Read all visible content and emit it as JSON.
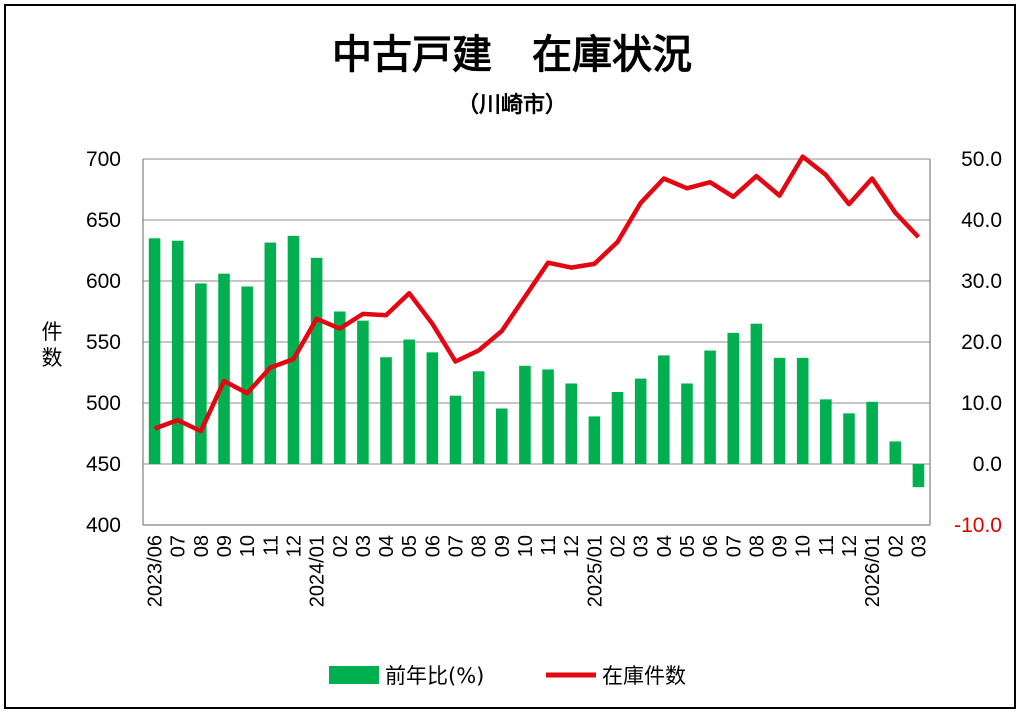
{
  "chart_data": {
    "type": "bar+line",
    "title": "中古戸建　在庫状況",
    "subtitle": "（川崎市）",
    "categories": [
      "2023/06",
      "07",
      "08",
      "09",
      "10",
      "11",
      "12",
      "2024/01",
      "02",
      "03",
      "04",
      "05",
      "06",
      "07",
      "08",
      "09",
      "10",
      "11",
      "12",
      "2025/01",
      "02",
      "03",
      "04",
      "05",
      "06",
      "07",
      "08",
      "09",
      "10",
      "11",
      "12",
      "2026/01",
      "02",
      "03"
    ],
    "series": [
      {
        "name": "前年比(%)",
        "type": "bar",
        "axis": "right",
        "color": "#00b050",
        "values": [
          37.0,
          36.6,
          29.6,
          31.2,
          29.1,
          36.3,
          37.4,
          33.8,
          25.0,
          23.5,
          17.5,
          20.4,
          18.3,
          11.2,
          15.2,
          9.1,
          16.1,
          15.5,
          13.2,
          7.8,
          11.8,
          14.0,
          17.8,
          13.2,
          18.6,
          21.5,
          23.0,
          17.4,
          17.4,
          10.6,
          8.3,
          10.2,
          3.7,
          -3.8
        ]
      },
      {
        "name": "在庫件数",
        "type": "line",
        "axis": "left",
        "color": "#e30613",
        "values": [
          479,
          486,
          477,
          518,
          508,
          529,
          536,
          569,
          561,
          573,
          572,
          590,
          565,
          534,
          543,
          559,
          587,
          615,
          611,
          614,
          632,
          664,
          684,
          676,
          681,
          669,
          686,
          670,
          702,
          687,
          663,
          684,
          656,
          636
        ]
      }
    ],
    "y_left": {
      "label": "件数",
      "range": [
        400,
        700
      ],
      "ticks": [
        "700",
        "650",
        "600",
        "550",
        "500",
        "450",
        "400"
      ]
    },
    "y_right": {
      "range": [
        -10,
        50
      ],
      "ticks": [
        "50.0",
        "40.0",
        "30.0",
        "20.0",
        "10.0",
        "0.0",
        "-10.0"
      ]
    },
    "grid": true,
    "legend_position": "bottom"
  },
  "legend": {
    "bar_label": "前年比(%)",
    "line_label": "在庫件数"
  }
}
